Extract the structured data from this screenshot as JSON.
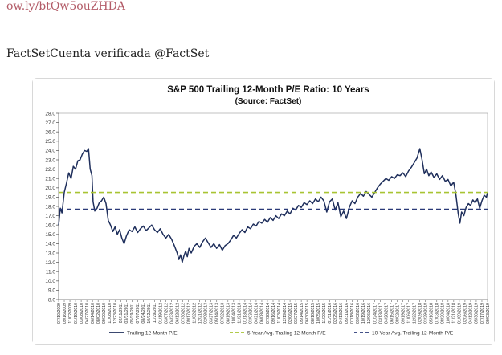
{
  "post": {
    "link_text": "ow.ly/btQw5ouZHDA",
    "author_line": "FactSetCuenta verificada @FactSet"
  },
  "chart_data": {
    "type": "line",
    "title": "S&P 500 Trailing 12-Month P/E Ratio: 10 Years",
    "subtitle": "(Source: FactSet)",
    "ylim": [
      8.0,
      28.0
    ],
    "y_ticks": [
      "8.0",
      "9.0",
      "10.0",
      "11.0",
      "12.0",
      "13.0",
      "14.0",
      "15.0",
      "16.0",
      "17.0",
      "18.0",
      "19.0",
      "20.0",
      "21.0",
      "22.0",
      "23.0",
      "24.0",
      "25.0",
      "26.0",
      "27.0",
      "28.0"
    ],
    "x_tick_labels": [
      "07/10/2009",
      "09/16/2009",
      "11/02/2009",
      "01/19/2010",
      "03/08/2010",
      "04/27/2010",
      "06/14/2010",
      "08/02/2010",
      "09/20/2010",
      "11/08/2010",
      "12/23/2010",
      "02/11/2011",
      "03/31/2011",
      "05/19/2011",
      "07/07/2011",
      "08/24/2011",
      "10/12/2011",
      "11/29/2011",
      "01/19/2012",
      "03/07/2012",
      "04/23/2012",
      "06/12/2012",
      "07/30/2012",
      "09/17/2012",
      "11/02/2012",
      "12/21/2012",
      "02/08/2013",
      "03/27/2013",
      "05/14/2013",
      "07/02/2013",
      "08/19/2013",
      "10/04/2013",
      "11/21/2013",
      "01/13/2014",
      "03/03/2014",
      "04/21/2014",
      "06/08/2014",
      "07/28/2014",
      "09/16/2014",
      "11/03/2014",
      "12/19/2014",
      "02/06/2015",
      "03/27/2015",
      "05/14/2015",
      "06/30/2015",
      "08/18/2015",
      "10/05/2015",
      "11/20/2015",
      "01/11/2016",
      "02/25/2016",
      "04/13/2016",
      "05/31/2016",
      "07/18/2016",
      "09/02/2016",
      "10/19/2016",
      "12/06/2016",
      "01/24/2017",
      "03/13/2017",
      "04/28/2017",
      "06/15/2017",
      "08/02/2017",
      "09/19/2017",
      "11/06/2017",
      "12/22/2017",
      "02/09/2018",
      "03/29/2018",
      "05/16/2018",
      "07/03/2018",
      "08/20/2018",
      "10/04/2018",
      "11/21/2018",
      "01/09/2019",
      "02/26/2019",
      "04/12/2019",
      "05/30/2019",
      "07/17/2019",
      "09/03/2019"
    ],
    "series": [
      {
        "name": "Trailing 12-Month P/E",
        "color": "#1f2f5c",
        "style": "solid",
        "values": [
          {
            "x": 0,
            "y": 16.0
          },
          {
            "x": 0.3,
            "y": 17.8
          },
          {
            "x": 0.6,
            "y": 17.3
          },
          {
            "x": 1,
            "y": 19.5
          },
          {
            "x": 1.4,
            "y": 20.5
          },
          {
            "x": 1.8,
            "y": 21.6
          },
          {
            "x": 2.2,
            "y": 21.0
          },
          {
            "x": 2.6,
            "y": 22.3
          },
          {
            "x": 3,
            "y": 22.0
          },
          {
            "x": 3.4,
            "y": 22.9
          },
          {
            "x": 3.8,
            "y": 23.0
          },
          {
            "x": 4.2,
            "y": 23.6
          },
          {
            "x": 4.6,
            "y": 24.0
          },
          {
            "x": 5,
            "y": 23.9
          },
          {
            "x": 5.3,
            "y": 24.2
          },
          {
            "x": 5.6,
            "y": 22.0
          },
          {
            "x": 5.9,
            "y": 21.3
          },
          {
            "x": 6.1,
            "y": 18.5
          },
          {
            "x": 6.4,
            "y": 17.5
          },
          {
            "x": 6.8,
            "y": 17.8
          },
          {
            "x": 7.2,
            "y": 18.4
          },
          {
            "x": 7.6,
            "y": 18.6
          },
          {
            "x": 8,
            "y": 19.0
          },
          {
            "x": 8.4,
            "y": 18.3
          },
          {
            "x": 8.8,
            "y": 16.5
          },
          {
            "x": 9.2,
            "y": 16.0
          },
          {
            "x": 9.6,
            "y": 15.3
          },
          {
            "x": 10,
            "y": 15.8
          },
          {
            "x": 10.4,
            "y": 15.0
          },
          {
            "x": 10.8,
            "y": 15.5
          },
          {
            "x": 11.2,
            "y": 14.6
          },
          {
            "x": 11.6,
            "y": 14.0
          },
          {
            "x": 12,
            "y": 14.8
          },
          {
            "x": 12.5,
            "y": 15.5
          },
          {
            "x": 13,
            "y": 15.3
          },
          {
            "x": 13.5,
            "y": 15.8
          },
          {
            "x": 14,
            "y": 15.2
          },
          {
            "x": 14.5,
            "y": 15.6
          },
          {
            "x": 15,
            "y": 15.9
          },
          {
            "x": 15.5,
            "y": 15.4
          },
          {
            "x": 16,
            "y": 15.7
          },
          {
            "x": 16.5,
            "y": 16.0
          },
          {
            "x": 17,
            "y": 15.5
          },
          {
            "x": 17.5,
            "y": 15.2
          },
          {
            "x": 18,
            "y": 15.6
          },
          {
            "x": 18.5,
            "y": 15.0
          },
          {
            "x": 19,
            "y": 14.6
          },
          {
            "x": 19.5,
            "y": 15.0
          },
          {
            "x": 20,
            "y": 14.5
          },
          {
            "x": 20.5,
            "y": 13.8
          },
          {
            "x": 21,
            "y": 13.0
          },
          {
            "x": 21.3,
            "y": 12.3
          },
          {
            "x": 21.6,
            "y": 12.8
          },
          {
            "x": 21.9,
            "y": 12.0
          },
          {
            "x": 22.2,
            "y": 12.7
          },
          {
            "x": 22.5,
            "y": 13.2
          },
          {
            "x": 22.8,
            "y": 12.6
          },
          {
            "x": 23.1,
            "y": 13.5
          },
          {
            "x": 23.5,
            "y": 13.0
          },
          {
            "x": 24,
            "y": 13.7
          },
          {
            "x": 24.5,
            "y": 14.0
          },
          {
            "x": 25,
            "y": 13.6
          },
          {
            "x": 25.5,
            "y": 14.2
          },
          {
            "x": 26,
            "y": 14.6
          },
          {
            "x": 26.5,
            "y": 14.1
          },
          {
            "x": 27,
            "y": 13.6
          },
          {
            "x": 27.5,
            "y": 14.0
          },
          {
            "x": 28,
            "y": 13.5
          },
          {
            "x": 28.5,
            "y": 13.9
          },
          {
            "x": 29,
            "y": 13.3
          },
          {
            "x": 29.5,
            "y": 13.8
          },
          {
            "x": 30,
            "y": 14.0
          },
          {
            "x": 30.5,
            "y": 14.4
          },
          {
            "x": 31,
            "y": 14.9
          },
          {
            "x": 31.5,
            "y": 14.6
          },
          {
            "x": 32,
            "y": 15.1
          },
          {
            "x": 32.5,
            "y": 15.5
          },
          {
            "x": 33,
            "y": 15.2
          },
          {
            "x": 33.5,
            "y": 15.8
          },
          {
            "x": 34,
            "y": 15.6
          },
          {
            "x": 34.5,
            "y": 16.1
          },
          {
            "x": 35,
            "y": 15.9
          },
          {
            "x": 35.5,
            "y": 16.4
          },
          {
            "x": 36,
            "y": 16.2
          },
          {
            "x": 36.5,
            "y": 16.6
          },
          {
            "x": 37,
            "y": 16.3
          },
          {
            "x": 37.5,
            "y": 16.8
          },
          {
            "x": 38,
            "y": 16.5
          },
          {
            "x": 38.5,
            "y": 17.0
          },
          {
            "x": 39,
            "y": 16.7
          },
          {
            "x": 39.5,
            "y": 17.2
          },
          {
            "x": 40,
            "y": 17.0
          },
          {
            "x": 40.5,
            "y": 17.5
          },
          {
            "x": 41,
            "y": 17.2
          },
          {
            "x": 41.5,
            "y": 17.8
          },
          {
            "x": 42,
            "y": 17.6
          },
          {
            "x": 42.5,
            "y": 18.1
          },
          {
            "x": 43,
            "y": 17.9
          },
          {
            "x": 43.5,
            "y": 18.4
          },
          {
            "x": 44,
            "y": 18.2
          },
          {
            "x": 44.5,
            "y": 18.6
          },
          {
            "x": 45,
            "y": 18.3
          },
          {
            "x": 45.5,
            "y": 18.8
          },
          {
            "x": 46,
            "y": 18.5
          },
          {
            "x": 46.5,
            "y": 19.0
          },
          {
            "x": 47,
            "y": 18.6
          },
          {
            "x": 47.5,
            "y": 17.4
          },
          {
            "x": 48,
            "y": 18.5
          },
          {
            "x": 48.5,
            "y": 18.8
          },
          {
            "x": 49,
            "y": 17.6
          },
          {
            "x": 49.5,
            "y": 18.4
          },
          {
            "x": 50,
            "y": 16.9
          },
          {
            "x": 50.5,
            "y": 17.5
          },
          {
            "x": 51,
            "y": 16.7
          },
          {
            "x": 51.5,
            "y": 17.9
          },
          {
            "x": 52,
            "y": 18.6
          },
          {
            "x": 52.5,
            "y": 18.3
          },
          {
            "x": 53,
            "y": 19.0
          },
          {
            "x": 53.5,
            "y": 19.4
          },
          {
            "x": 54,
            "y": 19.1
          },
          {
            "x": 54.5,
            "y": 19.6
          },
          {
            "x": 55,
            "y": 19.3
          },
          {
            "x": 55.5,
            "y": 19.0
          },
          {
            "x": 56,
            "y": 19.5
          },
          {
            "x": 56.5,
            "y": 20.0
          },
          {
            "x": 57,
            "y": 20.4
          },
          {
            "x": 57.5,
            "y": 20.7
          },
          {
            "x": 58,
            "y": 21.0
          },
          {
            "x": 58.5,
            "y": 20.8
          },
          {
            "x": 59,
            "y": 21.2
          },
          {
            "x": 59.5,
            "y": 21.0
          },
          {
            "x": 60,
            "y": 21.4
          },
          {
            "x": 60.5,
            "y": 21.3
          },
          {
            "x": 61,
            "y": 21.6
          },
          {
            "x": 61.5,
            "y": 21.2
          },
          {
            "x": 62,
            "y": 21.8
          },
          {
            "x": 62.5,
            "y": 22.2
          },
          {
            "x": 63,
            "y": 22.7
          },
          {
            "x": 63.5,
            "y": 23.2
          },
          {
            "x": 64,
            "y": 24.2
          },
          {
            "x": 64.4,
            "y": 23.0
          },
          {
            "x": 64.8,
            "y": 21.5
          },
          {
            "x": 65.2,
            "y": 22.0
          },
          {
            "x": 65.6,
            "y": 21.3
          },
          {
            "x": 66,
            "y": 21.7
          },
          {
            "x": 66.5,
            "y": 21.1
          },
          {
            "x": 67,
            "y": 21.5
          },
          {
            "x": 67.5,
            "y": 20.9
          },
          {
            "x": 68,
            "y": 21.3
          },
          {
            "x": 68.5,
            "y": 20.7
          },
          {
            "x": 69,
            "y": 20.9
          },
          {
            "x": 69.5,
            "y": 20.2
          },
          {
            "x": 70,
            "y": 20.6
          },
          {
            "x": 70.4,
            "y": 19.2
          },
          {
            "x": 70.8,
            "y": 17.2
          },
          {
            "x": 71.1,
            "y": 16.2
          },
          {
            "x": 71.4,
            "y": 17.4
          },
          {
            "x": 71.8,
            "y": 17.0
          },
          {
            "x": 72.2,
            "y": 17.9
          },
          {
            "x": 72.6,
            "y": 18.3
          },
          {
            "x": 73,
            "y": 18.1
          },
          {
            "x": 73.4,
            "y": 18.7
          },
          {
            "x": 73.8,
            "y": 18.4
          },
          {
            "x": 74.2,
            "y": 18.8
          },
          {
            "x": 74.6,
            "y": 17.8
          },
          {
            "x": 75,
            "y": 18.6
          },
          {
            "x": 75.4,
            "y": 19.2
          },
          {
            "x": 75.8,
            "y": 19.0
          },
          {
            "x": 76,
            "y": 19.5
          }
        ]
      },
      {
        "name": "5-Year Avg. Trailing 12-Month P/E",
        "color": "#a8c432",
        "style": "dashed",
        "values": [
          {
            "x": 0,
            "y": 19.5
          },
          {
            "x": 76,
            "y": 19.5
          }
        ]
      },
      {
        "name": "10-Year Avg. Trailing 12-Month P/E",
        "color": "#2a3a78",
        "style": "dashed",
        "values": [
          {
            "x": 0,
            "y": 17.7
          },
          {
            "x": 76,
            "y": 17.7
          }
        ]
      }
    ],
    "grid": false,
    "legend_position": "bottom"
  }
}
